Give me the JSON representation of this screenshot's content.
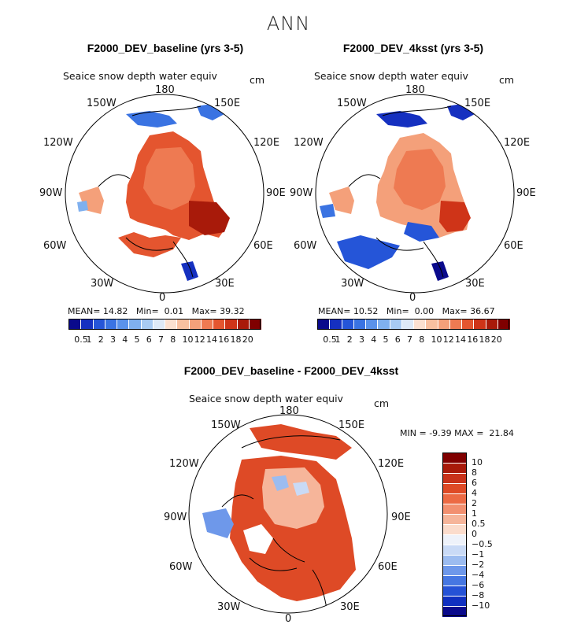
{
  "season": "ANN",
  "units": "cm",
  "variable": "Seaice snow depth water equiv",
  "panels": [
    {
      "title": "F2000_DEV_baseline (yrs 3-5)",
      "mean_label": "MEAN=",
      "mean": "14.82",
      "min_label": "Min=",
      "min": "0.01",
      "max_label": "Max=",
      "max": "39.32"
    },
    {
      "title": "F2000_DEV_4ksst (yrs 3-5)",
      "mean_label": "MEAN=",
      "mean": "10.52",
      "min_label": "Min=",
      "min": "0.00",
      "max_label": "Max=",
      "max": "36.67"
    },
    {
      "title": "F2000_DEV_baseline - F2000_DEV_4ksst",
      "min_label": "MIN =",
      "min": "-9.39",
      "max_label": "MAX =",
      "max": "21.84"
    }
  ],
  "longitude_labels": {
    "top": "180",
    "bottom": "0",
    "ul": "150W",
    "ur": "150E",
    "ml1": "120W",
    "mr1": "120E",
    "ml2": "90W",
    "mr2": "90E",
    "ll1": "60W",
    "lr1": "60E",
    "ll2": "30W",
    "lr2": "30E"
  },
  "chart_data": [
    {
      "type": "heatmap",
      "projection": "north polar stereographic",
      "title": "F2000_DEV_baseline (yrs 3-5)",
      "variable": "Seaice snow depth water equiv",
      "units": "cm",
      "stats": {
        "mean": 14.82,
        "min": 0.01,
        "max": 39.32
      },
      "colorbar_levels": [
        "0.5",
        "1",
        "2",
        "3",
        "4",
        "5",
        "6",
        "7",
        "8",
        "10",
        "12",
        "14",
        "16",
        "18",
        "20"
      ],
      "colorbar_colors": [
        "#0a0a8c",
        "#1530c0",
        "#2555d8",
        "#3a73e2",
        "#5a92ea",
        "#7fb0ef",
        "#a8cbf3",
        "#dde9f7",
        "#fbe0d0",
        "#f8c0a0",
        "#f4a07a",
        "#ee7a52",
        "#e4552f",
        "#cf3418",
        "#a81a0a",
        "#800000"
      ]
    },
    {
      "type": "heatmap",
      "projection": "north polar stereographic",
      "title": "F2000_DEV_4ksst (yrs 3-5)",
      "variable": "Seaice snow depth water equiv",
      "units": "cm",
      "stats": {
        "mean": 10.52,
        "min": 0.0,
        "max": 36.67
      },
      "colorbar_levels": [
        "0.5",
        "1",
        "2",
        "3",
        "4",
        "5",
        "6",
        "7",
        "8",
        "10",
        "12",
        "14",
        "16",
        "18",
        "20"
      ],
      "colorbar_colors": [
        "#0a0a8c",
        "#1530c0",
        "#2555d8",
        "#3a73e2",
        "#5a92ea",
        "#7fb0ef",
        "#a8cbf3",
        "#dde9f7",
        "#fbe0d0",
        "#f8c0a0",
        "#f4a07a",
        "#ee7a52",
        "#e4552f",
        "#cf3418",
        "#a81a0a",
        "#800000"
      ]
    },
    {
      "type": "heatmap",
      "projection": "north polar stereographic",
      "title": "F2000_DEV_baseline - F2000_DEV_4ksst",
      "variable": "Seaice snow depth water equiv",
      "units": "cm",
      "stats": {
        "min": -9.39,
        "max": 21.84
      },
      "colorbar_levels": [
        "10",
        "8",
        "6",
        "4",
        "2",
        "1",
        "0.5",
        "0",
        "−0.5",
        "−1",
        "−2",
        "−4",
        "−6",
        "−8",
        "−10"
      ],
      "colorbar_colors": [
        "#800000",
        "#a81a0a",
        "#c8321a",
        "#de4a26",
        "#ec6a44",
        "#f29070",
        "#f6b59a",
        "#fbdccc",
        "#eef2fa",
        "#c9daf6",
        "#9cbcf0",
        "#6e98ea",
        "#4677e2",
        "#2552d6",
        "#1030c0",
        "#0a0a8c"
      ]
    }
  ]
}
